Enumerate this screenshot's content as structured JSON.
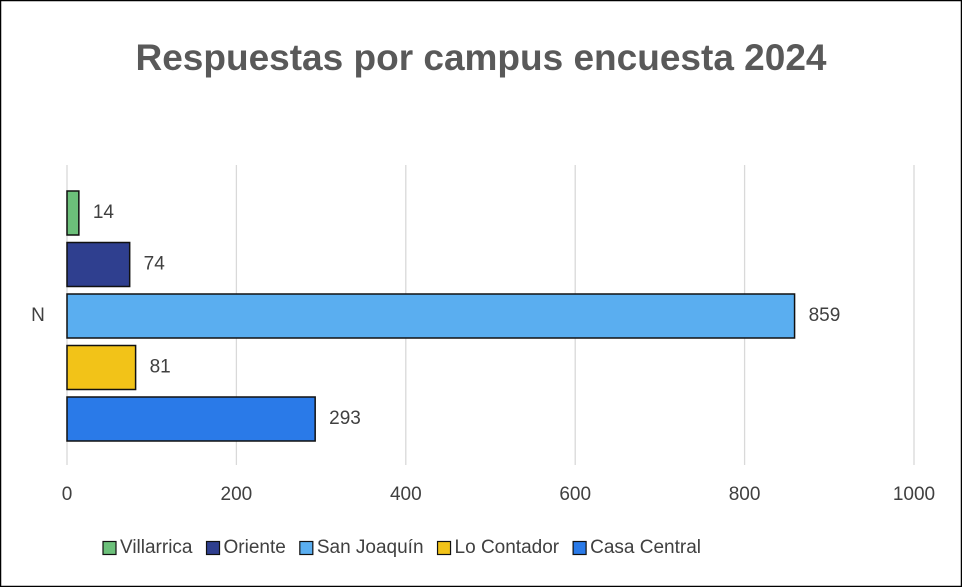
{
  "chart_data": {
    "type": "bar",
    "orientation": "horizontal",
    "title": "Respuestas por campus encuesta 2024",
    "categories": [
      "N"
    ],
    "series": [
      {
        "name": "Villarrica",
        "color": "#6cc07a",
        "values": [
          14
        ]
      },
      {
        "name": "Oriente",
        "color": "#2f3f8f",
        "values": [
          74
        ]
      },
      {
        "name": "San Joaquín",
        "color": "#5aaef0",
        "values": [
          859
        ]
      },
      {
        "name": "Lo Contador",
        "color": "#f2c318",
        "values": [
          81
        ]
      },
      {
        "name": "Casa Central",
        "color": "#2a7ae8",
        "values": [
          293
        ]
      }
    ],
    "xlim": [
      0,
      1000
    ],
    "xticks": [
      0,
      200,
      400,
      600,
      800,
      1000
    ],
    "grid": true,
    "legend": "bottom"
  }
}
